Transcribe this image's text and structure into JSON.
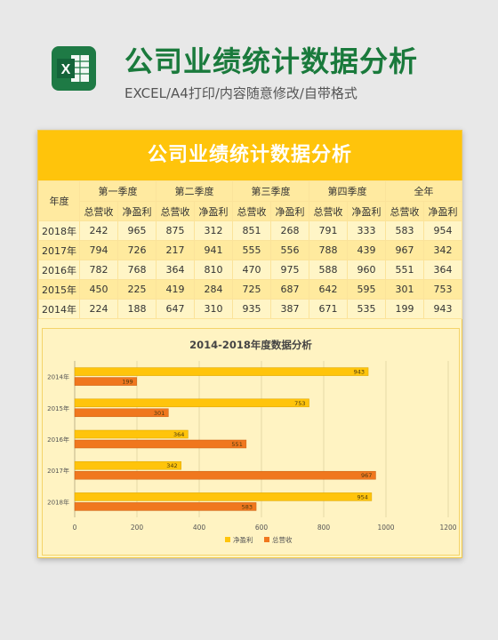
{
  "header": {
    "icon": "excel-icon",
    "icon_letter": "X",
    "title": "公司业绩统计数据分析",
    "subtitle": "EXCEL/A4打印/内容随意修改/自带格式"
  },
  "sheet": {
    "banner_title": "公司业绩统计数据分析",
    "table": {
      "year_header": "年度",
      "groups": [
        "第一季度",
        "第二季度",
        "第三季度",
        "第四季度",
        "全年"
      ],
      "sub_headers": [
        "总营收",
        "净盈利"
      ],
      "rows": [
        {
          "year": "2018年",
          "values": [
            "242",
            "965",
            "875",
            "312",
            "851",
            "268",
            "791",
            "333",
            "583",
            "954"
          ]
        },
        {
          "year": "2017年",
          "values": [
            "794",
            "726",
            "217",
            "941",
            "555",
            "556",
            "788",
            "439",
            "967",
            "342"
          ]
        },
        {
          "year": "2016年",
          "values": [
            "782",
            "768",
            "364",
            "810",
            "470",
            "975",
            "588",
            "960",
            "551",
            "364"
          ]
        },
        {
          "year": "2015年",
          "values": [
            "450",
            "225",
            "419",
            "284",
            "725",
            "687",
            "642",
            "595",
            "301",
            "753"
          ]
        },
        {
          "year": "2014年",
          "values": [
            "224",
            "188",
            "647",
            "310",
            "935",
            "387",
            "671",
            "535",
            "199",
            "943"
          ]
        }
      ]
    }
  },
  "colors": {
    "net_profit": "#ffc40b",
    "total_revenue": "#f0771e",
    "title_green": "#1a7a3c",
    "banner": "#ffc40b"
  },
  "chart_data": {
    "type": "bar",
    "orientation": "horizontal",
    "title": "2014-2018年度数据分析",
    "categories": [
      "2014年",
      "2015年",
      "2016年",
      "2017年",
      "2018年"
    ],
    "series": [
      {
        "name": "净盈利",
        "values": [
          943,
          753,
          364,
          342,
          954
        ]
      },
      {
        "name": "总营收",
        "values": [
          199,
          301,
          551,
          967,
          583
        ]
      }
    ],
    "xlim": [
      0,
      1200
    ],
    "x_ticks": [
      0,
      200,
      400,
      600,
      800,
      1000,
      1200
    ],
    "grid": true,
    "legend_position": "bottom"
  }
}
